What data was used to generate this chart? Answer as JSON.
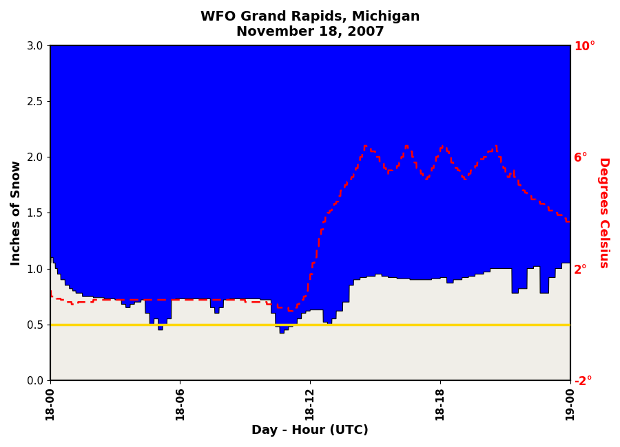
{
  "title_line1": "WFO Grand Rapids, Michigan",
  "title_line2": "November 18, 2007",
  "xlabel": "Day - Hour (UTC)",
  "ylabel_left": "Inches of Snow",
  "ylabel_right": "Degrees Celsius",
  "bg_color": "#0000FF",
  "below_snow_color": "#F0EEE8",
  "snow_line_color": "#000000",
  "temp_line_color": "#FF0000",
  "ref_line_color": "#FFD700",
  "ref_line_value": 0.5,
  "ylim_left": [
    0.0,
    3.0
  ],
  "ylim_right": [
    -2,
    10
  ],
  "xtick_positions": [
    0,
    6,
    12,
    18,
    24
  ],
  "xtick_labels": [
    "18-00",
    "18-06",
    "18-12",
    "18-18",
    "19-00"
  ],
  "ytick_left": [
    0.0,
    0.5,
    1.0,
    1.5,
    2.0,
    2.5,
    3.0
  ],
  "ytick_right_positions": [
    -2,
    2,
    6,
    10
  ],
  "ytick_right_labels": [
    "-2°",
    "2°",
    "6°",
    "10°"
  ],
  "figsize": [
    9.0,
    6.5
  ],
  "dpi": 100
}
